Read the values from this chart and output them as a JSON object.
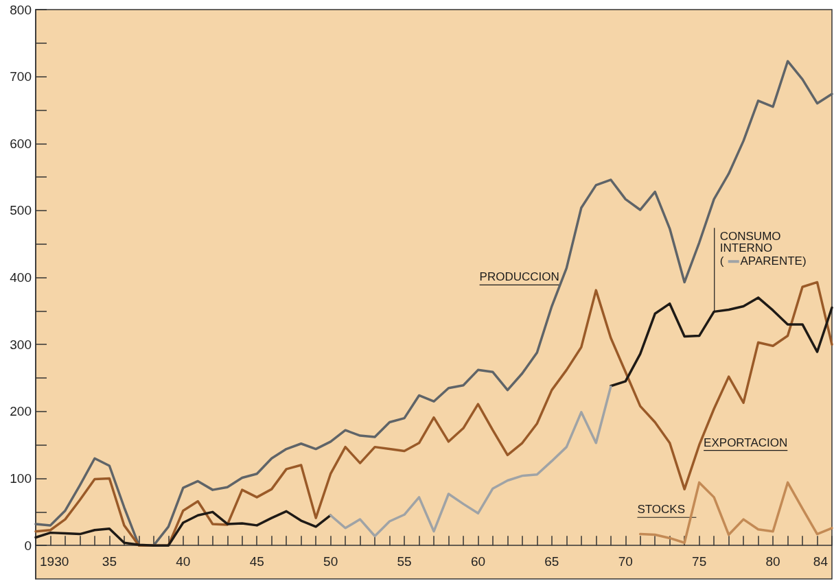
{
  "chart_data": {
    "type": "line",
    "x": [
      1930,
      1931,
      1932,
      1933,
      1934,
      1935,
      1936,
      1937,
      1938,
      1939,
      1940,
      1941,
      1942,
      1943,
      1944,
      1945,
      1946,
      1947,
      1948,
      1949,
      1950,
      1951,
      1952,
      1953,
      1954,
      1955,
      1956,
      1957,
      1958,
      1959,
      1960,
      1961,
      1962,
      1963,
      1964,
      1965,
      1966,
      1967,
      1968,
      1969,
      1970,
      1971,
      1972,
      1973,
      1974,
      1975,
      1976,
      1977,
      1978,
      1979,
      1980,
      1981,
      1982,
      1983,
      1984
    ],
    "series": [
      {
        "name": "PRODUCCION",
        "color": "#5f6468",
        "values": [
          32,
          30,
          52,
          90,
          130,
          119,
          57,
          0,
          0,
          28,
          86,
          96,
          83,
          87,
          101,
          107,
          130,
          144,
          152,
          144,
          155,
          172,
          164,
          162,
          184,
          190,
          224,
          215,
          235,
          239,
          262,
          259,
          232,
          257,
          288,
          357,
          414,
          504,
          538,
          546,
          517,
          501,
          528,
          473,
          393,
          452,
          517,
          555,
          604,
          664,
          655,
          723,
          696,
          660,
          674
        ]
      },
      {
        "name": "EXPORTACION",
        "color": "#9a5a28",
        "values": [
          21,
          23,
          39,
          68,
          99,
          100,
          30,
          0,
          0,
          0,
          52,
          66,
          32,
          31,
          83,
          72,
          84,
          114,
          120,
          41,
          107,
          147,
          123,
          147,
          144,
          141,
          153,
          191,
          155,
          175,
          211,
          172,
          135,
          153,
          182,
          232,
          262,
          296,
          381,
          310,
          259,
          208,
          184,
          153,
          84,
          150,
          204,
          252,
          213,
          303,
          298,
          313,
          386,
          393,
          300
        ]
      },
      {
        "name": "CONSUMO INTERNO",
        "color": "#1e1a16",
        "values": [
          12,
          19,
          18,
          17,
          23,
          25,
          4,
          1,
          0,
          0,
          34,
          45,
          50,
          32,
          33,
          30,
          41,
          51,
          37,
          28,
          45,
          null,
          null,
          null,
          null,
          null,
          null,
          null,
          null,
          null,
          null,
          null,
          null,
          null,
          null,
          null,
          null,
          null,
          null,
          238,
          245,
          286,
          346,
          361,
          312,
          313,
          349,
          352,
          357,
          370,
          351,
          330,
          330,
          289,
          355
        ]
      },
      {
        "name": "( APARENTE)",
        "color": "#9fa3a6",
        "values": [
          null,
          null,
          null,
          null,
          null,
          null,
          null,
          null,
          null,
          null,
          null,
          null,
          null,
          null,
          null,
          null,
          null,
          null,
          null,
          null,
          45,
          26,
          39,
          14,
          36,
          46,
          72,
          21,
          77,
          62,
          48,
          85,
          97,
          104,
          106,
          126,
          147,
          199,
          153,
          237,
          null,
          null,
          null,
          null,
          null,
          null,
          null,
          null,
          null,
          null,
          null,
          null,
          null,
          null,
          null
        ]
      },
      {
        "name": "STOCKS",
        "color": "#c38a55",
        "values": [
          null,
          null,
          null,
          null,
          null,
          null,
          null,
          null,
          null,
          null,
          null,
          null,
          null,
          null,
          null,
          null,
          null,
          null,
          null,
          null,
          null,
          null,
          null,
          null,
          null,
          null,
          null,
          null,
          null,
          null,
          null,
          null,
          null,
          null,
          null,
          null,
          null,
          null,
          null,
          null,
          null,
          17,
          16,
          11,
          4,
          94,
          72,
          16,
          39,
          24,
          21,
          94,
          55,
          17,
          26
        ]
      }
    ],
    "xlim": [
      1930,
      1984
    ],
    "xticks": [
      {
        "value": 1930,
        "label": "1930"
      },
      {
        "value": 1931,
        "label": null
      },
      {
        "value": 1932,
        "label": null
      },
      {
        "value": 1933,
        "label": null
      },
      {
        "value": 1934,
        "label": null
      },
      {
        "value": 1935,
        "label": "35"
      },
      {
        "value": 1936,
        "label": null
      },
      {
        "value": 1937,
        "label": null
      },
      {
        "value": 1938,
        "label": null
      },
      {
        "value": 1939,
        "label": null
      },
      {
        "value": 1940,
        "label": "40"
      },
      {
        "value": 1941,
        "label": null
      },
      {
        "value": 1942,
        "label": null
      },
      {
        "value": 1943,
        "label": null
      },
      {
        "value": 1944,
        "label": null
      },
      {
        "value": 1945,
        "label": "45"
      },
      {
        "value": 1946,
        "label": null
      },
      {
        "value": 1947,
        "label": null
      },
      {
        "value": 1948,
        "label": null
      },
      {
        "value": 1949,
        "label": null
      },
      {
        "value": 1950,
        "label": "50"
      },
      {
        "value": 1951,
        "label": null
      },
      {
        "value": 1952,
        "label": null
      },
      {
        "value": 1953,
        "label": null
      },
      {
        "value": 1954,
        "label": null
      },
      {
        "value": 1955,
        "label": "55"
      },
      {
        "value": 1956,
        "label": null
      },
      {
        "value": 1957,
        "label": null
      },
      {
        "value": 1958,
        "label": null
      },
      {
        "value": 1959,
        "label": null
      },
      {
        "value": 1960,
        "label": "60"
      },
      {
        "value": 1961,
        "label": null
      },
      {
        "value": 1962,
        "label": null
      },
      {
        "value": 1963,
        "label": null
      },
      {
        "value": 1964,
        "label": null
      },
      {
        "value": 1965,
        "label": "65"
      },
      {
        "value": 1966,
        "label": null
      },
      {
        "value": 1967,
        "label": null
      },
      {
        "value": 1968,
        "label": null
      },
      {
        "value": 1969,
        "label": null
      },
      {
        "value": 1970,
        "label": "70"
      },
      {
        "value": 1971,
        "label": null
      },
      {
        "value": 1972,
        "label": null
      },
      {
        "value": 1973,
        "label": null
      },
      {
        "value": 1974,
        "label": null
      },
      {
        "value": 1975,
        "label": "75"
      },
      {
        "value": 1976,
        "label": null
      },
      {
        "value": 1977,
        "label": null
      },
      {
        "value": 1978,
        "label": null
      },
      {
        "value": 1979,
        "label": null
      },
      {
        "value": 1980,
        "label": "80"
      },
      {
        "value": 1981,
        "label": null
      },
      {
        "value": 1982,
        "label": null
      },
      {
        "value": 1983,
        "label": null
      },
      {
        "value": 1984,
        "label": "84"
      }
    ],
    "ylim": [
      -50,
      800
    ],
    "yticks": [
      0,
      {
        "value": 50,
        "label": null
      },
      100,
      {
        "value": 150,
        "label": null
      },
      200,
      {
        "value": 250,
        "label": null
      },
      300,
      {
        "value": 350,
        "label": null
      },
      400,
      {
        "value": 450,
        "label": null
      },
      500,
      {
        "value": 550,
        "label": null
      },
      600,
      {
        "value": 650,
        "label": null
      },
      700,
      {
        "value": 750,
        "label": null
      },
      800
    ],
    "grid": false,
    "legend": false,
    "marker": "none",
    "line_style": "solid"
  }
}
